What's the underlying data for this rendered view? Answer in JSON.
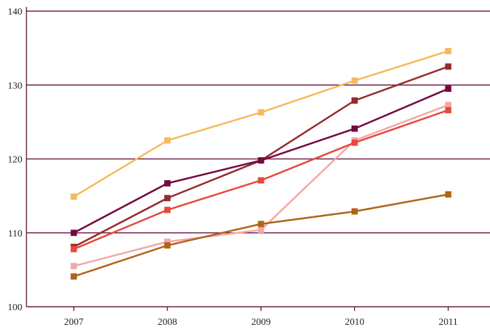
{
  "chart_data": {
    "type": "line",
    "title": "",
    "xlabel": "",
    "ylabel": "",
    "x": [
      "2007",
      "2008",
      "2009",
      "2010",
      "2011"
    ],
    "ylim": [
      100,
      140
    ],
    "yticks": [
      "100",
      "110",
      "120",
      "130",
      "140"
    ],
    "grid": "horizontal",
    "legend": "none",
    "series": [
      {
        "color": "#f7b95c",
        "values": [
          114.9,
          122.5,
          126.3,
          130.6,
          134.6
        ]
      },
      {
        "color": "#962b2e",
        "values": [
          108.1,
          114.7,
          119.8,
          127.9,
          132.5
        ]
      },
      {
        "color": "#730a40",
        "values": [
          110.0,
          116.7,
          119.8,
          124.1,
          129.5
        ]
      },
      {
        "color": "#f4a7a8",
        "values": [
          105.5,
          108.8,
          110.4,
          122.5,
          127.3
        ]
      },
      {
        "color": "#e64a3c",
        "values": [
          107.8,
          113.1,
          117.1,
          122.2,
          126.6
        ]
      },
      {
        "color": "#b06416",
        "values": [
          104.1,
          108.3,
          111.2,
          112.9,
          115.2
        ]
      }
    ]
  },
  "colors": {
    "axis": "#5e1a3f",
    "grid": "#6e1d48"
  }
}
